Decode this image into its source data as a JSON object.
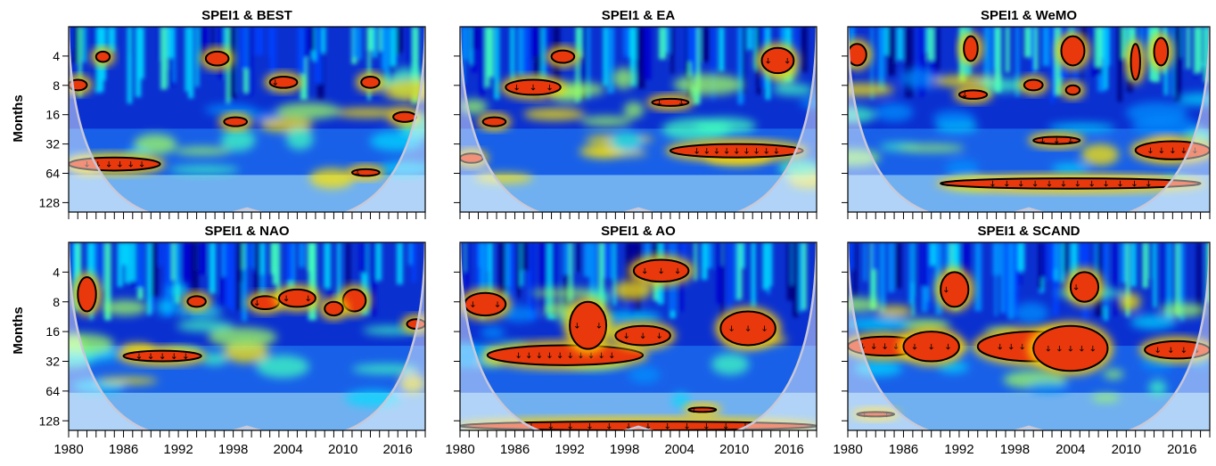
{
  "figure": {
    "y_axis_label": "Months",
    "x_tick_labels": [
      "1980",
      "1986",
      "1992",
      "1998",
      "2004",
      "2010",
      "2016"
    ]
  },
  "chart_data": [
    {
      "type": "heatmap",
      "title": "SPEI1  &  BEST",
      "xlabel": "",
      "ylabel": "Months",
      "x_range": [
        1980,
        2019
      ],
      "y_scale": "log2",
      "y_ticks": [
        4,
        8,
        16,
        32,
        64,
        128
      ],
      "y_range": [
        2,
        160
      ],
      "significant_regions": [
        {
          "time": [
            1980,
            1982
          ],
          "period": [
            7,
            9
          ]
        },
        {
          "time": [
            1980,
            1990
          ],
          "period": [
            44,
            60
          ]
        },
        {
          "time": [
            1983,
            1984.5
          ],
          "period": [
            3.6,
            4.6
          ]
        },
        {
          "time": [
            1995,
            1997.5
          ],
          "period": [
            3.6,
            5
          ]
        },
        {
          "time": [
            1997,
            1999.5
          ],
          "period": [
            17,
            21
          ]
        },
        {
          "time": [
            2002,
            2005
          ],
          "period": [
            6.5,
            8.5
          ]
        },
        {
          "time": [
            2012,
            2014
          ],
          "period": [
            6.5,
            8.5
          ]
        },
        {
          "time": [
            2011,
            2014
          ],
          "period": [
            58,
            68
          ]
        },
        {
          "time": [
            2015.5,
            2018
          ],
          "period": [
            15,
            19
          ]
        }
      ]
    },
    {
      "type": "heatmap",
      "title": "SPEI1  &  EA",
      "xlabel": "",
      "ylabel": "",
      "x_range": [
        1980,
        2019
      ],
      "y_scale": "log2",
      "y_ticks": [
        4,
        8,
        16,
        32,
        64,
        128
      ],
      "y_range": [
        2,
        160
      ],
      "significant_regions": [
        {
          "time": [
            1985,
            1991
          ],
          "period": [
            7,
            10
          ]
        },
        {
          "time": [
            1982.5,
            1985
          ],
          "period": [
            17,
            21
          ]
        },
        {
          "time": [
            1980,
            1982.5
          ],
          "period": [
            40,
            50
          ]
        },
        {
          "time": [
            1990,
            1992.5
          ],
          "period": [
            3.5,
            4.7
          ]
        },
        {
          "time": [
            2001,
            2005
          ],
          "period": [
            11,
            13
          ]
        },
        {
          "time": [
            2003,
            2017.5
          ],
          "period": [
            32,
            44
          ]
        },
        {
          "time": [
            2013,
            2016.5
          ],
          "period": [
            3.3,
            6
          ]
        }
      ]
    },
    {
      "type": "heatmap",
      "title": "SPEI1  & WeMO",
      "xlabel": "",
      "ylabel": "",
      "x_range": [
        1980,
        2019
      ],
      "y_scale": "log2",
      "y_ticks": [
        4,
        8,
        16,
        32,
        64,
        128
      ],
      "y_range": [
        2,
        160
      ],
      "significant_regions": [
        {
          "time": [
            1980,
            1982
          ],
          "period": [
            3,
            5
          ]
        },
        {
          "time": [
            1992.5,
            1994
          ],
          "period": [
            2.5,
            4.5
          ]
        },
        {
          "time": [
            2003,
            2005.5
          ],
          "period": [
            2.5,
            5
          ]
        },
        {
          "time": [
            2010.5,
            2011.5
          ],
          "period": [
            3,
            7
          ]
        },
        {
          "time": [
            2013,
            2014.5
          ],
          "period": [
            2.6,
            5
          ]
        },
        {
          "time": [
            1992,
            1995
          ],
          "period": [
            9,
            11
          ]
        },
        {
          "time": [
            1999,
            2001
          ],
          "period": [
            7,
            9
          ]
        },
        {
          "time": [
            2003.5,
            2005
          ],
          "period": [
            8,
            10
          ]
        },
        {
          "time": [
            2000,
            2005
          ],
          "period": [
            27,
            32
          ]
        },
        {
          "time": [
            1990,
            2018
          ],
          "period": [
            72,
            92
          ]
        },
        {
          "time": [
            2011,
            2019
          ],
          "period": [
            30,
            46
          ]
        }
      ]
    },
    {
      "type": "heatmap",
      "title": "SPEI1  &  NAO",
      "xlabel": "",
      "ylabel": "Months",
      "x_range": [
        1980,
        2019
      ],
      "y_scale": "log2",
      "y_ticks": [
        4,
        8,
        16,
        32,
        64,
        128
      ],
      "y_range": [
        2,
        160
      ],
      "significant_regions": [
        {
          "time": [
            1981,
            1983
          ],
          "period": [
            4.5,
            10
          ]
        },
        {
          "time": [
            1986,
            1994.5
          ],
          "period": [
            25,
            32
          ]
        },
        {
          "time": [
            1993,
            1995
          ],
          "period": [
            7,
            9
          ]
        },
        {
          "time": [
            2000,
            2003
          ],
          "period": [
            7,
            9.5
          ]
        },
        {
          "time": [
            2003,
            2007
          ],
          "period": [
            6,
            9
          ]
        },
        {
          "time": [
            2010,
            2012.5
          ],
          "period": [
            6,
            10
          ]
        },
        {
          "time": [
            2008,
            2010
          ],
          "period": [
            8,
            11
          ]
        },
        {
          "time": [
            2017,
            2019
          ],
          "period": [
            12,
            15
          ]
        }
      ]
    },
    {
      "type": "heatmap",
      "title": "SPEI1  &  AO",
      "xlabel": "",
      "ylabel": "",
      "x_range": [
        1980,
        2019
      ],
      "y_scale": "log2",
      "y_ticks": [
        4,
        8,
        16,
        32,
        64,
        128
      ],
      "y_range": [
        2,
        160
      ],
      "significant_regions": [
        {
          "time": [
            1980.5,
            1985
          ],
          "period": [
            6.5,
            11
          ]
        },
        {
          "time": [
            1983,
            2000
          ],
          "period": [
            22,
            35
          ]
        },
        {
          "time": [
            1992,
            1996
          ],
          "period": [
            8,
            24
          ]
        },
        {
          "time": [
            1997,
            2003
          ],
          "period": [
            14,
            22
          ]
        },
        {
          "time": [
            2008.5,
            2014.5
          ],
          "period": [
            10,
            22
          ]
        },
        {
          "time": [
            1999,
            2005
          ],
          "period": [
            3,
            5
          ]
        },
        {
          "time": [
            2005,
            2008
          ],
          "period": [
            96,
            102
          ]
        },
        {
          "time": [
            1980,
            2019
          ],
          "period": [
            130,
            160
          ]
        }
      ]
    },
    {
      "type": "heatmap",
      "title": "SPEI1  &  SCAND",
      "xlabel": "",
      "ylabel": "",
      "x_range": [
        1980,
        2019
      ],
      "y_scale": "log2",
      "y_ticks": [
        4,
        8,
        16,
        32,
        64,
        128
      ],
      "y_range": [
        2,
        160
      ],
      "significant_regions": [
        {
          "time": [
            1980,
            1988
          ],
          "period": [
            18,
            28
          ]
        },
        {
          "time": [
            1986,
            1992
          ],
          "period": [
            16,
            32
          ]
        },
        {
          "time": [
            1994,
            2006
          ],
          "period": [
            16,
            32
          ]
        },
        {
          "time": [
            2000,
            2008
          ],
          "period": [
            14,
            40
          ]
        },
        {
          "time": [
            2012,
            2019
          ],
          "period": [
            20,
            30
          ]
        },
        {
          "time": [
            1990,
            1993
          ],
          "period": [
            4,
            9
          ]
        },
        {
          "time": [
            2004,
            2007
          ],
          "period": [
            4,
            8
          ]
        },
        {
          "time": [
            1981,
            1985
          ],
          "period": [
            105,
            115
          ]
        }
      ]
    }
  ]
}
